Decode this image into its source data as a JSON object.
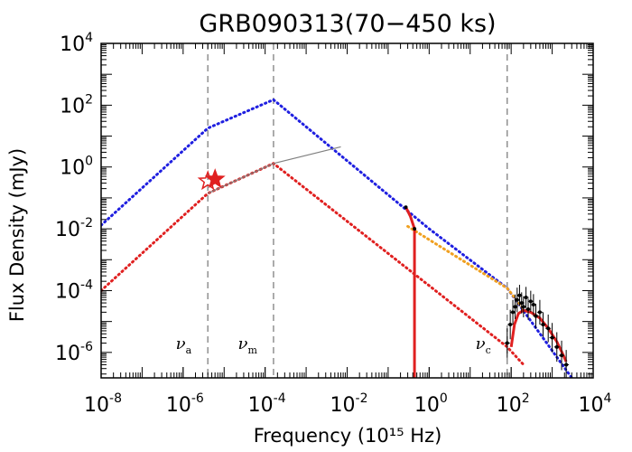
{
  "chart_data": {
    "type": "line",
    "title": "GRB090313(70−450 ks)",
    "xlabel": "Frequency (10¹⁵ Hz)",
    "ylabel": "Flux Density (mJy)",
    "xscale": "log",
    "yscale": "log",
    "xlim": [
      1e-08,
      10000
    ],
    "ylim": [
      1.5e-07,
      10000
    ],
    "x_ticks": [
      {
        "base": "10",
        "exp": "-8",
        "value": 1e-08
      },
      {
        "base": "10",
        "exp": "-6",
        "value": 1e-06
      },
      {
        "base": "10",
        "exp": "-4",
        "value": 0.0001
      },
      {
        "base": "10",
        "exp": "-2",
        "value": 0.01
      },
      {
        "base": "10",
        "exp": "0",
        "value": 1
      },
      {
        "base": "10",
        "exp": "2",
        "value": 100
      },
      {
        "base": "10",
        "exp": "4",
        "value": 10000
      }
    ],
    "y_ticks": [
      {
        "base": "10",
        "exp": "-6",
        "value": 1e-06
      },
      {
        "base": "10",
        "exp": "-4",
        "value": 0.0001
      },
      {
        "base": "10",
        "exp": "-2",
        "value": 0.01
      },
      {
        "base": "10",
        "exp": "0",
        "value": 1
      },
      {
        "base": "10",
        "exp": "2",
        "value": 100
      },
      {
        "base": "10",
        "exp": "4",
        "value": 10000
      }
    ],
    "break_frequencies": [
      {
        "symbol": "ν",
        "sub": "a",
        "x": 4e-06
      },
      {
        "symbol": "ν",
        "sub": "m",
        "x": 0.00016
      },
      {
        "symbol": "ν",
        "sub": "c",
        "x": 80
      }
    ],
    "series": [
      {
        "style": "dotted",
        "color": "#1f1fe0",
        "points": [
          [
            1e-08,
            0.013
          ],
          [
            4e-06,
            18
          ],
          [
            0.00016,
            150
          ],
          [
            1,
            0.01
          ],
          [
            80,
            0.00012
          ],
          [
            3000,
            1.5e-07
          ]
        ]
      },
      {
        "style": "dotted",
        "color": "#e02020",
        "points": [
          [
            1e-08,
            0.0001
          ],
          [
            4e-06,
            0.14
          ],
          [
            0.00016,
            1.3
          ],
          [
            80,
            1.5e-06
          ],
          [
            200,
            4e-07
          ]
        ]
      },
      {
        "style": "dotted",
        "color": "#f0a020",
        "points": [
          [
            0.3,
            0.012
          ],
          [
            80,
            0.00012
          ],
          [
            200,
            2.5e-05
          ]
        ]
      },
      {
        "style": "solid",
        "color": "#808080",
        "points": [
          [
            4e-06,
            0.14
          ],
          [
            0.00016,
            1.3
          ],
          [
            0.007,
            4.5
          ]
        ]
      },
      {
        "style": "solid",
        "color": "#e02020",
        "points": [
          [
            0.27,
            0.05
          ],
          [
            0.35,
            0.025
          ],
          [
            0.42,
            0.012
          ],
          [
            0.44,
            0.01
          ],
          [
            0.44,
            1.5e-07
          ]
        ]
      },
      {
        "style": "solid",
        "color": "#e02020",
        "points": [
          [
            100,
            1.5e-06
          ],
          [
            120,
            8e-06
          ],
          [
            150,
            1.8e-05
          ],
          [
            200,
            2.3e-05
          ],
          [
            300,
            2e-05
          ],
          [
            500,
            1.3e-05
          ],
          [
            800,
            6e-06
          ],
          [
            1300,
            2.2e-06
          ],
          [
            1800,
            9e-07
          ],
          [
            2200,
            5e-07
          ]
        ]
      }
    ],
    "optical_points": [
      {
        "x": 4e-06,
        "y": 0.35,
        "marker": "open-star",
        "color": "#e02020"
      },
      {
        "x": 6e-06,
        "y": 0.4,
        "marker": "filled-star",
        "color": "#e02020"
      }
    ],
    "xray_points": [
      {
        "x": 80,
        "y": 2e-06,
        "err": 3
      },
      {
        "x": 95,
        "y": 8e-06,
        "err": 3
      },
      {
        "x": 110,
        "y": 2e-05,
        "err": 2.5
      },
      {
        "x": 125,
        "y": 3e-05,
        "err": 2.5
      },
      {
        "x": 140,
        "y": 5e-05,
        "err": 2.5
      },
      {
        "x": 160,
        "y": 7e-05,
        "err": 2.2
      },
      {
        "x": 180,
        "y": 4e-05,
        "err": 2.2
      },
      {
        "x": 200,
        "y": 3e-05,
        "err": 2.2
      },
      {
        "x": 230,
        "y": 6e-05,
        "err": 2.2
      },
      {
        "x": 260,
        "y": 2.5e-05,
        "err": 2.2
      },
      {
        "x": 300,
        "y": 4.5e-05,
        "err": 2.2
      },
      {
        "x": 350,
        "y": 3.5e-05,
        "err": 2.2
      },
      {
        "x": 400,
        "y": 1.5e-05,
        "err": 2.5
      },
      {
        "x": 500,
        "y": 2e-05,
        "err": 2.5
      },
      {
        "x": 600,
        "y": 8e-06,
        "err": 2.5
      },
      {
        "x": 800,
        "y": 6e-06,
        "err": 2.8
      },
      {
        "x": 1000,
        "y": 3e-06,
        "err": 3
      },
      {
        "x": 1300,
        "y": 1.5e-06,
        "err": 3
      },
      {
        "x": 1700,
        "y": 8e-07,
        "err": 3
      },
      {
        "x": 2200,
        "y": 4e-07,
        "err": 3
      }
    ]
  }
}
